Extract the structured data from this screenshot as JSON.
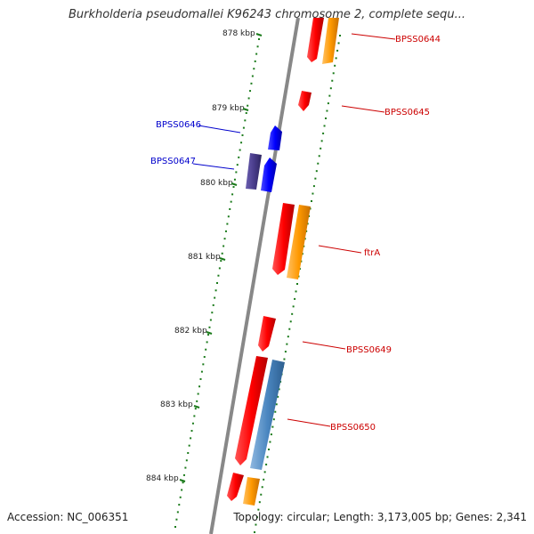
{
  "title": "Burkholderia pseudomallei K96243 chromosome 2, complete sequ...",
  "footer": {
    "accession": "Accession: NC_006351",
    "topology": "Topology: circular; Length: 3,173,005 bp; Genes: 2,341"
  },
  "colors": {
    "forward_gene": "#ff0000",
    "reverse_gene": "#0000ff",
    "forward_cds": "#ff9900",
    "reverse_cds_dark": "#4a3d8c",
    "cds_blue": "#4a86c0",
    "tick": "#1a7a1a",
    "backbone": "#888888",
    "label_forward": "#cc0000",
    "label_reverse": "#0000cc"
  },
  "ruler": [
    {
      "label": "878 kbp"
    },
    {
      "label": "879 kbp"
    },
    {
      "label": "880 kbp"
    },
    {
      "label": "881 kbp"
    },
    {
      "label": "882 kbp"
    },
    {
      "label": "883 kbp"
    },
    {
      "label": "884 kbp"
    }
  ],
  "gene_labels": [
    {
      "name": "BPSS0644",
      "strand": "forward"
    },
    {
      "name": "BPSS0645",
      "strand": "forward"
    },
    {
      "name": "BPSS0646",
      "strand": "reverse"
    },
    {
      "name": "BPSS0647",
      "strand": "reverse"
    },
    {
      "name": "ftrA",
      "strand": "forward"
    },
    {
      "name": "BPSS0649",
      "strand": "forward"
    },
    {
      "name": "BPSS0650",
      "strand": "forward"
    }
  ]
}
